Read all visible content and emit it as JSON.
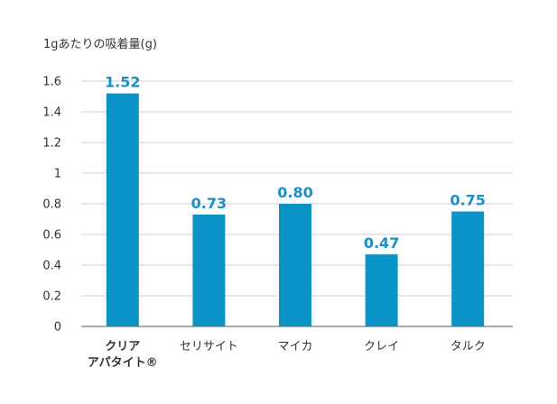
{
  "chart_data": {
    "type": "bar",
    "ylabel": "1gあたりの吸着量(g)",
    "xlabel": "",
    "title": "",
    "categories": [
      [
        "クリア",
        "アパタイト®"
      ],
      [
        "セリサイト"
      ],
      [
        "マイカ"
      ],
      [
        "クレイ"
      ],
      [
        "タルク"
      ]
    ],
    "values": [
      1.52,
      0.73,
      0.8,
      0.47,
      0.75
    ],
    "data_labels": [
      "1.52",
      "0.73",
      "0.80",
      "0.47",
      "0.75"
    ],
    "highlight_category_index": 0,
    "ylim": [
      0,
      1.6
    ],
    "yticks": [
      0,
      0.2,
      0.4,
      0.6,
      0.8,
      1,
      1.2,
      1.4,
      1.6
    ],
    "ytick_labels": [
      "0",
      "0.2",
      "0.4",
      "0.6",
      "0.8",
      "1",
      "1.2",
      "1.4",
      "1.6"
    ],
    "grid": true,
    "legend": "none",
    "bar_color": "#0a93c6",
    "label_color": "#1a8ec5"
  }
}
